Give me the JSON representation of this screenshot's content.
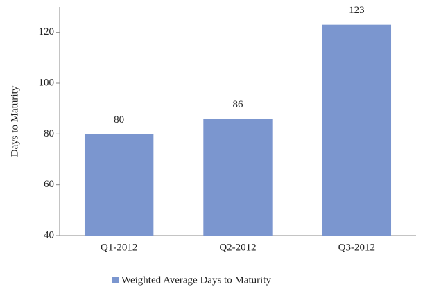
{
  "chart_data": {
    "type": "bar",
    "y_axis_label": "Days to Maturity",
    "categories": [
      "Q1-2012",
      "Q2-2012",
      "Q3-2012"
    ],
    "series": [
      {
        "name": "Weighted Average Days to Maturity",
        "color": "#7b96cf",
        "values": [
          80,
          86,
          123
        ]
      }
    ],
    "ylim": [
      40,
      130
    ],
    "yticks": [
      40,
      60,
      80,
      100,
      120
    ],
    "grid": false,
    "legend": "bottom"
  }
}
